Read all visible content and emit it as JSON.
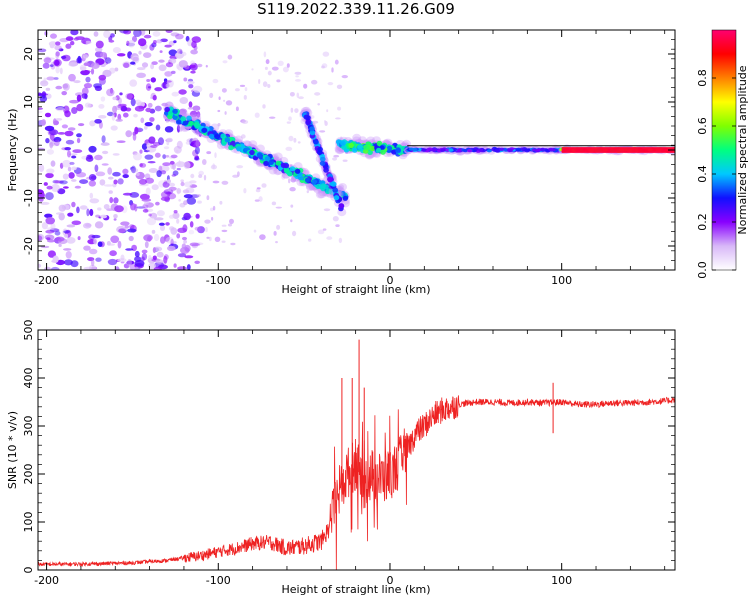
{
  "figure": {
    "title": "S119.2022.339.11.26.G09"
  },
  "chart_data": [
    {
      "type": "heatmap",
      "title": "S119.2022.339.11.26.G09",
      "xlabel": "Height of straight line (km)",
      "ylabel": "Frequency (Hz)",
      "xlim": [
        -205,
        166
      ],
      "ylim": [
        -25,
        25
      ],
      "x_ticks": [
        -200,
        -100,
        0,
        100
      ],
      "x_tick_labels": [
        "-200",
        "-100",
        "0",
        "100"
      ],
      "y_ticks": [
        -20,
        -10,
        0,
        10,
        20
      ],
      "y_tick_labels": [
        "-20",
        "-10",
        "0",
        "10",
        "20"
      ],
      "colorbar": {
        "label": "Normalized spectral amplitude",
        "range": [
          0,
          1
        ],
        "ticks": [
          0,
          0.2,
          0.4,
          0.6,
          0.8
        ],
        "tick_labels": [
          "0.0",
          "0.2",
          "0.4",
          "0.6",
          "0.8"
        ],
        "colormap": [
          "#ffffff",
          "#d8b8f8",
          "#8800ff",
          "#1010ff",
          "#00c8ff",
          "#00ff80",
          "#80ff00",
          "#ffff00",
          "#ff8000",
          "#ff0000",
          "#ff0070"
        ]
      },
      "ridges": [
        {
          "x_start": -130,
          "x_end": -25,
          "freq_start": 8,
          "freq_end": -10,
          "amplitude": 0.45
        },
        {
          "x_start": -50,
          "x_end": -28,
          "freq_start": 8,
          "freq_end": -12,
          "amplitude": 0.35
        },
        {
          "x_start": -30,
          "x_end": 10,
          "freq_start": 1,
          "freq_end": 0,
          "amplitude": 0.5
        },
        {
          "x_start": 10,
          "x_end": 100,
          "freq_start": 0,
          "freq_end": 0,
          "amplitude": 0.35
        },
        {
          "x_start": 100,
          "x_end": 166,
          "freq_start": 0,
          "freq_end": 0,
          "amplitude": 0.95
        }
      ],
      "grid": false
    },
    {
      "type": "line",
      "xlabel": "Height of straight line (km)",
      "ylabel": "SNR (10 * v/v)",
      "xlim": [
        -205,
        166
      ],
      "ylim": [
        0,
        500
      ],
      "x_ticks": [
        -200,
        -100,
        0,
        100
      ],
      "x_tick_labels": [
        "-200",
        "-100",
        "0",
        "100"
      ],
      "y_ticks": [
        0,
        100,
        200,
        300,
        400,
        500
      ],
      "y_tick_labels": [
        "0",
        "100",
        "200",
        "300",
        "400",
        "500"
      ],
      "line_color": "#ee2222",
      "series": [
        {
          "x": [
            -205,
            -190,
            -170,
            -150,
            -130,
            -110,
            -100,
            -90,
            -80,
            -70,
            -60,
            -50,
            -40,
            -35,
            -30,
            -25,
            -20,
            -15,
            -10,
            -5,
            0,
            5,
            10,
            15,
            20,
            25,
            30,
            40,
            50,
            60,
            70,
            80,
            90,
            100,
            110,
            120,
            130,
            140,
            150,
            160,
            166
          ],
          "values": [
            12,
            12,
            13,
            15,
            20,
            30,
            38,
            45,
            55,
            58,
            45,
            50,
            60,
            90,
            160,
            200,
            220,
            180,
            200,
            190,
            200,
            220,
            250,
            285,
            300,
            320,
            332,
            345,
            350,
            350,
            348,
            350,
            348,
            350,
            345,
            345,
            348,
            348,
            350,
            352,
            355
          ]
        }
      ],
      "spikes": [
        {
          "x": -18,
          "value": 480
        },
        {
          "x": -28,
          "value": 400
        },
        {
          "x": -22,
          "value": 400
        },
        {
          "x": -15,
          "value": 380
        },
        {
          "x": 95,
          "value": 390
        },
        {
          "x": 95,
          "value": 285
        }
      ],
      "grid": false
    }
  ]
}
